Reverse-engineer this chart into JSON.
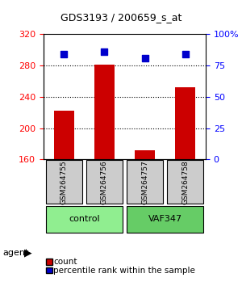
{
  "title": "GDS3193 / 200659_s_at",
  "samples": [
    "GSM264755",
    "GSM264756",
    "GSM264757",
    "GSM264758"
  ],
  "counts": [
    222,
    281,
    172,
    252
  ],
  "percentile_ranks": [
    84,
    86,
    81,
    84
  ],
  "ylim_left": [
    160,
    320
  ],
  "ylim_right": [
    0,
    100
  ],
  "yticks_left": [
    160,
    200,
    240,
    280,
    320
  ],
  "yticks_right": [
    0,
    25,
    50,
    75,
    100
  ],
  "ytick_labels_right": [
    "0",
    "25",
    "50",
    "75",
    "100%"
  ],
  "groups": [
    {
      "label": "control",
      "indices": [
        0,
        1
      ],
      "color": "#90EE90"
    },
    {
      "label": "VAF347",
      "indices": [
        2,
        3
      ],
      "color": "#66CC66"
    }
  ],
  "bar_color": "#CC0000",
  "dot_color": "#0000CC",
  "bar_width": 0.5,
  "grid_color": "#000000",
  "background_color": "#ffffff",
  "sample_box_color": "#CCCCCC",
  "agent_label": "agent",
  "legend_count_label": "count",
  "legend_pct_label": "percentile rank within the sample"
}
